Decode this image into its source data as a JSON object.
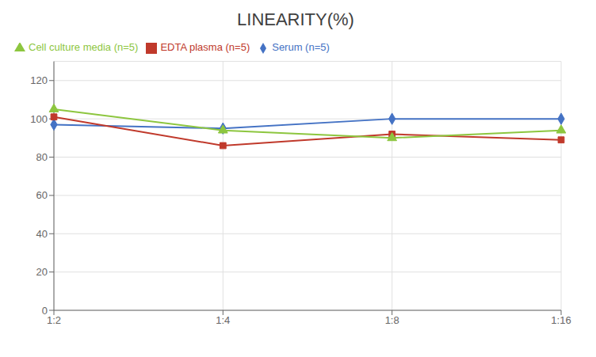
{
  "chart_data": {
    "type": "line",
    "title": "LINEARITY(%)",
    "categories": [
      "1:2",
      "1:4",
      "1:8",
      "1:16"
    ],
    "series": [
      {
        "name": "Serum (n=5)",
        "color": "#4472C4",
        "marker": "diamond",
        "values": [
          97,
          95,
          100,
          100
        ]
      },
      {
        "name": "EDTA plasma (n=5)",
        "color": "#C0392B",
        "marker": "square",
        "values": [
          101,
          86,
          92,
          89
        ]
      },
      {
        "name": "Cell culture media (n=5)",
        "color": "#8DC63F",
        "marker": "triangle",
        "values": [
          105,
          94,
          90,
          94
        ]
      }
    ],
    "ylim": [
      0,
      130
    ],
    "yticks": [
      0,
      20,
      40,
      60,
      80,
      100,
      120
    ],
    "grid": true,
    "legend": "upper left"
  }
}
